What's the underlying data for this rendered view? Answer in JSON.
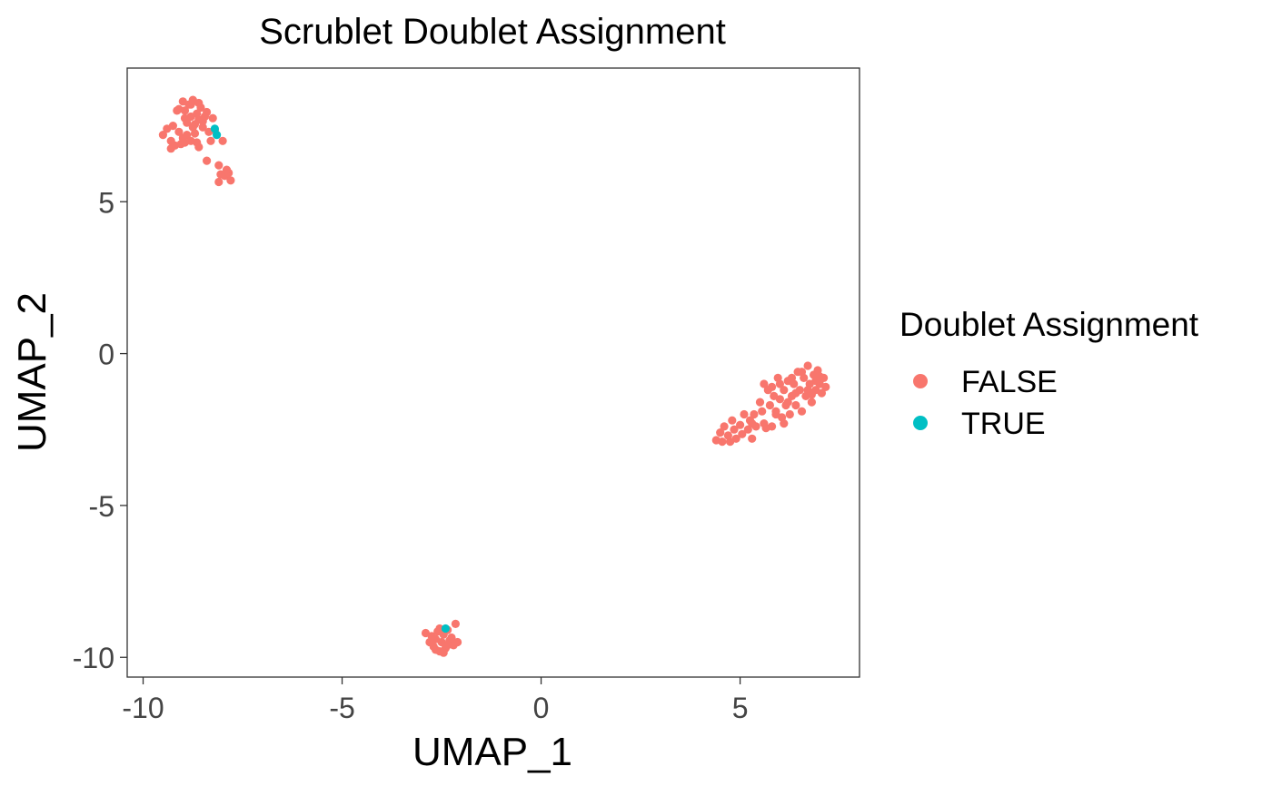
{
  "chart_data": {
    "type": "scatter",
    "title": "Scrublet Doublet Assignment",
    "xlabel": "UMAP_1",
    "ylabel": "UMAP_2",
    "xlim": [
      -10.4,
      8.0
    ],
    "ylim": [
      -10.65,
      9.4
    ],
    "xticks": [
      -10,
      -5,
      0,
      5
    ],
    "xtick_labels": [
      "-10",
      "-5",
      "0",
      "5"
    ],
    "yticks": [
      -10,
      -5,
      0,
      5
    ],
    "ytick_labels": [
      "-10",
      "-5",
      "0",
      "5"
    ],
    "grid": false,
    "legend": {
      "title": "Doublet Assignment",
      "position": "right"
    },
    "series": [
      {
        "name": "FALSE",
        "color": "#F8766D",
        "points": [
          [
            -9.5,
            7.2
          ],
          [
            -9.4,
            7.4
          ],
          [
            -9.3,
            7.0
          ],
          [
            -9.25,
            7.5
          ],
          [
            -9.2,
            6.85
          ],
          [
            -9.15,
            8.0
          ],
          [
            -9.1,
            7.3
          ],
          [
            -9.05,
            6.9
          ],
          [
            -9.0,
            8.3
          ],
          [
            -9.0,
            7.1
          ],
          [
            -8.95,
            8.0
          ],
          [
            -8.9,
            7.6
          ],
          [
            -8.9,
            7.2
          ],
          [
            -8.85,
            8.2
          ],
          [
            -8.8,
            7.8
          ],
          [
            -8.8,
            7.0
          ],
          [
            -8.75,
            8.35
          ],
          [
            -8.7,
            7.55
          ],
          [
            -8.7,
            7.25
          ],
          [
            -8.65,
            6.95
          ],
          [
            -8.6,
            7.7
          ],
          [
            -8.55,
            8.1
          ],
          [
            -8.5,
            7.45
          ],
          [
            -8.45,
            7.8
          ],
          [
            -8.4,
            7.95
          ],
          [
            -8.6,
            6.8
          ],
          [
            -8.35,
            7.3
          ],
          [
            -8.3,
            7.0
          ],
          [
            -8.25,
            7.75
          ],
          [
            -8.95,
            7.75
          ],
          [
            -9.1,
            8.05
          ],
          [
            -8.8,
            8.2
          ],
          [
            -8.65,
            7.9
          ],
          [
            -8.4,
            6.35
          ],
          [
            -8.1,
            6.2
          ],
          [
            -8.05,
            5.9
          ],
          [
            -8.0,
            7.0
          ],
          [
            -7.95,
            5.85
          ],
          [
            -7.85,
            5.95
          ],
          [
            -7.8,
            5.7
          ],
          [
            -7.9,
            6.05
          ],
          [
            -8.1,
            5.65
          ],
          [
            -9.3,
            6.75
          ],
          [
            -8.5,
            7.65
          ],
          [
            -8.2,
            7.35
          ],
          [
            -8.75,
            7.45
          ],
          [
            -8.95,
            6.95
          ],
          [
            -8.6,
            8.25
          ],
          [
            -2.9,
            -9.2
          ],
          [
            -2.8,
            -9.5
          ],
          [
            -2.75,
            -9.3
          ],
          [
            -2.7,
            -9.65
          ],
          [
            -2.65,
            -9.4
          ],
          [
            -2.6,
            -9.15
          ],
          [
            -2.55,
            -9.8
          ],
          [
            -2.5,
            -9.5
          ],
          [
            -2.45,
            -9.25
          ],
          [
            -2.4,
            -9.7
          ],
          [
            -2.35,
            -9.1
          ],
          [
            -2.3,
            -9.45
          ],
          [
            -2.25,
            -9.35
          ],
          [
            -2.2,
            -9.6
          ],
          [
            -2.15,
            -8.9
          ],
          [
            -2.1,
            -9.5
          ],
          [
            -2.55,
            -9.05
          ],
          [
            -2.45,
            -9.85
          ],
          [
            -2.65,
            -9.75
          ],
          [
            -2.35,
            -9.6
          ],
          [
            4.4,
            -2.85
          ],
          [
            4.5,
            -2.6
          ],
          [
            4.55,
            -2.9
          ],
          [
            4.6,
            -2.4
          ],
          [
            4.7,
            -2.7
          ],
          [
            4.8,
            -2.2
          ],
          [
            4.85,
            -2.5
          ],
          [
            4.9,
            -2.8
          ],
          [
            5.0,
            -2.35
          ],
          [
            5.05,
            -2.65
          ],
          [
            5.1,
            -2.0
          ],
          [
            5.2,
            -2.5
          ],
          [
            5.25,
            -2.2
          ],
          [
            5.3,
            -2.8
          ],
          [
            5.35,
            -2.0
          ],
          [
            5.4,
            -2.4
          ],
          [
            5.5,
            -1.6
          ],
          [
            5.55,
            -1.9
          ],
          [
            5.6,
            -2.3
          ],
          [
            5.7,
            -1.2
          ],
          [
            5.75,
            -1.7
          ],
          [
            5.8,
            -2.4
          ],
          [
            5.85,
            -1.4
          ],
          [
            5.9,
            -1.9
          ],
          [
            5.95,
            -0.8
          ],
          [
            6.0,
            -1.5
          ],
          [
            6.05,
            -2.1
          ],
          [
            6.1,
            -1.2
          ],
          [
            6.15,
            -1.7
          ],
          [
            6.2,
            -0.9
          ],
          [
            6.25,
            -2.0
          ],
          [
            6.3,
            -1.4
          ],
          [
            6.35,
            -1.0
          ],
          [
            6.4,
            -1.7
          ],
          [
            6.45,
            -0.6
          ],
          [
            6.5,
            -1.2
          ],
          [
            6.55,
            -1.9
          ],
          [
            6.6,
            -0.8
          ],
          [
            6.65,
            -1.4
          ],
          [
            6.7,
            -0.4
          ],
          [
            6.75,
            -1.0
          ],
          [
            6.8,
            -1.6
          ],
          [
            6.85,
            -0.7
          ],
          [
            6.9,
            -1.2
          ],
          [
            6.95,
            -0.55
          ],
          [
            7.0,
            -1.0
          ],
          [
            7.05,
            -1.3
          ],
          [
            7.1,
            -0.8
          ],
          [
            7.15,
            -1.1
          ],
          [
            6.0,
            -1.0
          ],
          [
            5.6,
            -1.0
          ],
          [
            6.2,
            -1.6
          ],
          [
            6.4,
            -1.3
          ],
          [
            5.9,
            -2.0
          ],
          [
            6.7,
            -1.2
          ],
          [
            6.9,
            -0.9
          ],
          [
            5.3,
            -2.3
          ],
          [
            4.75,
            -2.9
          ],
          [
            5.8,
            -1.1
          ],
          [
            6.55,
            -0.6
          ],
          [
            6.1,
            -2.3
          ],
          [
            5.65,
            -2.45
          ],
          [
            6.3,
            -0.8
          ],
          [
            7.0,
            -0.75
          ],
          [
            6.8,
            -1.35
          ]
        ]
      },
      {
        "name": "TRUE",
        "color": "#00BFC4",
        "points": [
          [
            -8.2,
            7.4
          ],
          [
            -8.15,
            7.2
          ],
          [
            -2.4,
            -9.05
          ]
        ]
      }
    ]
  }
}
